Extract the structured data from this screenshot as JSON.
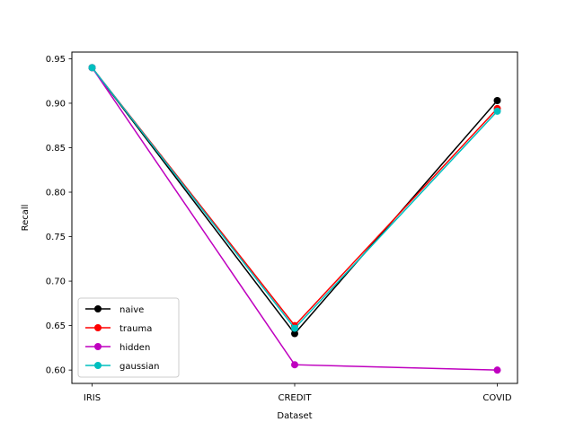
{
  "chart_data": {
    "type": "line",
    "xlabel": "Dataset",
    "ylabel": "Recall",
    "categories": [
      "IRIS",
      "CREDIT",
      "COVID"
    ],
    "ylim": [
      0.585,
      0.9575
    ],
    "yticks": [
      0.6,
      0.65,
      0.7,
      0.75,
      0.8,
      0.85,
      0.9,
      0.95
    ],
    "ytick_labels": [
      "0.60",
      "0.65",
      "0.70",
      "0.75",
      "0.80",
      "0.85",
      "0.90",
      "0.95"
    ],
    "grid": false,
    "legend_position": "lower-left",
    "series": [
      {
        "name": "naive",
        "color": "#000000",
        "values": [
          0.94,
          0.641,
          0.903
        ]
      },
      {
        "name": "trauma",
        "color": "#ff0000",
        "values": [
          0.94,
          0.65,
          0.894
        ]
      },
      {
        "name": "hidden",
        "color": "#bf00bf",
        "values": [
          0.94,
          0.606,
          0.6
        ]
      },
      {
        "name": "gaussian",
        "color": "#00bfbf",
        "values": [
          0.94,
          0.647,
          0.891
        ]
      }
    ]
  }
}
